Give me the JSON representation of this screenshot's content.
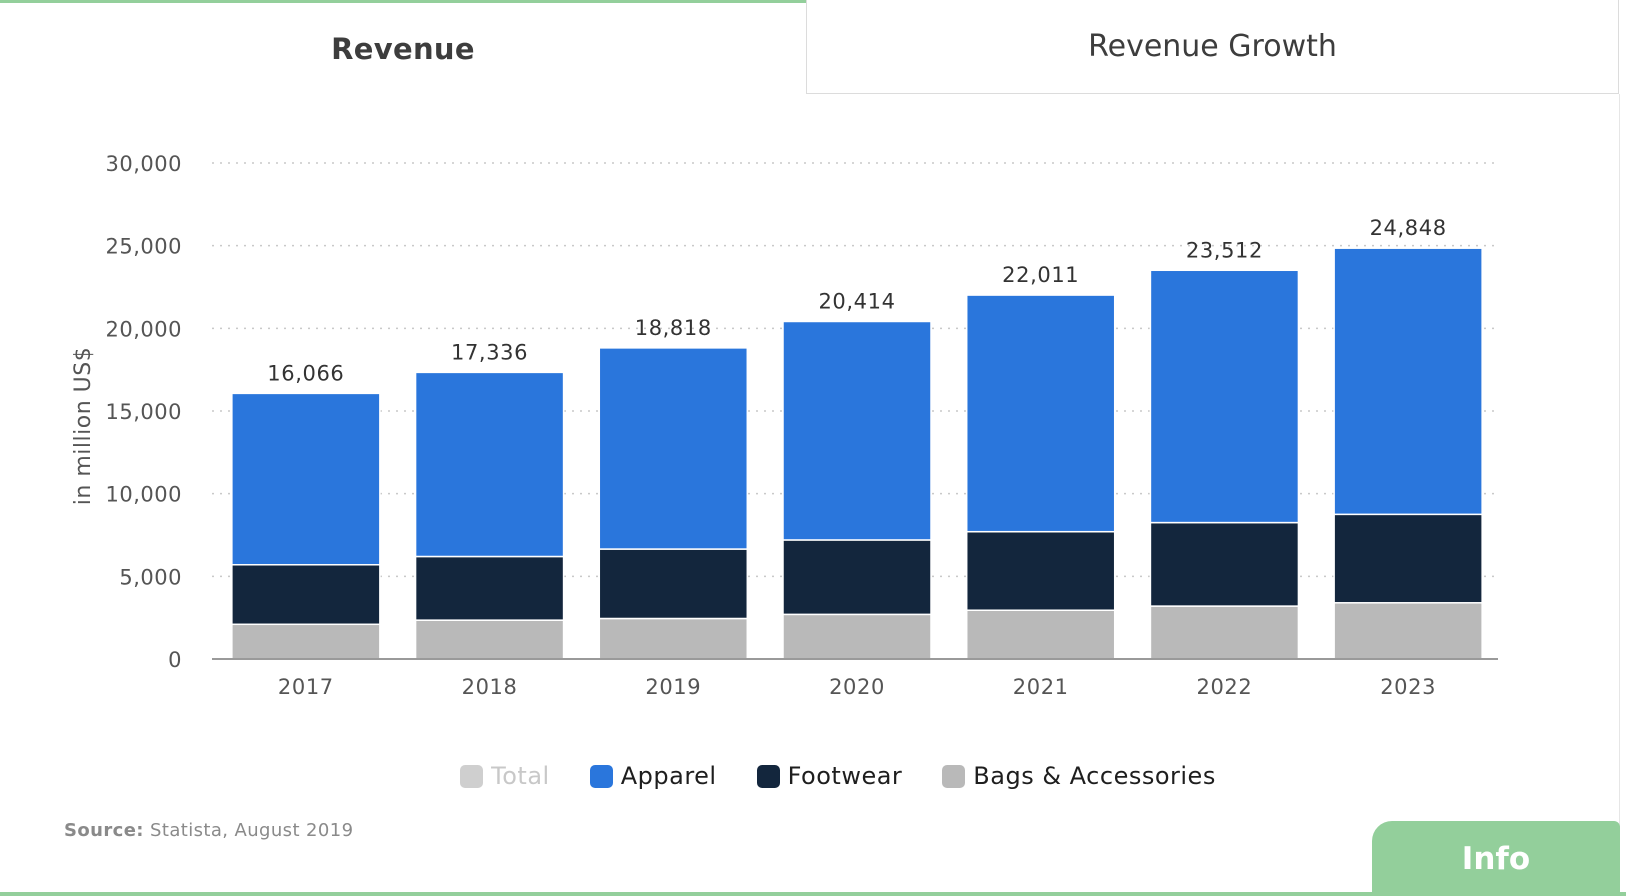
{
  "tabs": [
    {
      "label": "Revenue",
      "active": true
    },
    {
      "label": "Revenue Growth",
      "active": false
    }
  ],
  "colors": {
    "apparel": "#2a76dc",
    "footwear": "#13263d",
    "bags": "#b9b9b9",
    "total": "#cfcfcf",
    "accent": "#93cf9b"
  },
  "chart_data": {
    "type": "bar",
    "stacked": true,
    "title": "Revenue",
    "xlabel": "",
    "ylabel": "in million US$",
    "ylim": [
      0,
      30000
    ],
    "yticks": [
      0,
      5000,
      10000,
      15000,
      20000,
      25000,
      30000
    ],
    "ytick_labels": [
      "0",
      "5,000",
      "10,000",
      "15,000",
      "20,000",
      "25,000",
      "30,000"
    ],
    "grid": true,
    "categories": [
      "2017",
      "2018",
      "2019",
      "2020",
      "2021",
      "2022",
      "2023"
    ],
    "series": [
      {
        "name": "Bags & Accessories",
        "values": [
          2100,
          2350,
          2450,
          2700,
          2950,
          3200,
          3400
        ]
      },
      {
        "name": "Footwear",
        "values": [
          3600,
          3850,
          4200,
          4500,
          4750,
          5050,
          5350
        ]
      },
      {
        "name": "Apparel",
        "values": [
          10366,
          11136,
          12168,
          13214,
          14311,
          15262,
          16098
        ]
      }
    ],
    "totals": [
      16066,
      17336,
      18818,
      20414,
      22011,
      23512,
      24848
    ],
    "total_labels": [
      "16,066",
      "17,336",
      "18,818",
      "20,414",
      "22,011",
      "23,512",
      "24,848"
    ],
    "legend": [
      {
        "name": "Total",
        "enabled": false
      },
      {
        "name": "Apparel",
        "enabled": true
      },
      {
        "name": "Footwear",
        "enabled": true
      },
      {
        "name": "Bags & Accessories",
        "enabled": true
      }
    ],
    "legend_position": "bottom-center"
  },
  "source": {
    "label": "Source:",
    "text": "Statista, August 2019"
  },
  "info_button": {
    "label": "Info"
  }
}
